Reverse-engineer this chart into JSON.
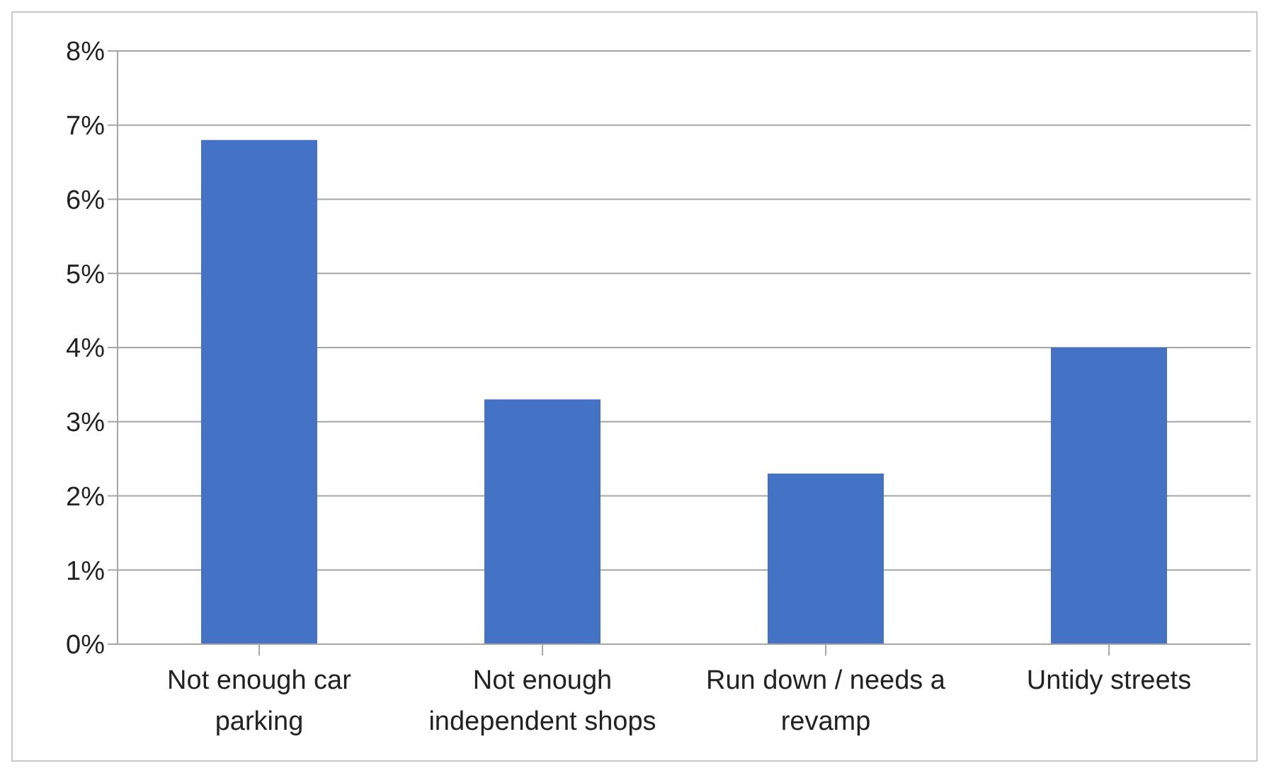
{
  "chart_data": {
    "type": "bar",
    "categories": [
      "Not enough car parking",
      "Not enough independent shops",
      "Run down / needs a revamp",
      "Untidy streets"
    ],
    "values": [
      6.8,
      3.3,
      2.3,
      4.0
    ],
    "color": "#4472c4",
    "ylim": [
      0,
      8
    ],
    "yticks": [
      {
        "value": 0,
        "label": "0%"
      },
      {
        "value": 1,
        "label": "1%"
      },
      {
        "value": 2,
        "label": "2%"
      },
      {
        "value": 3,
        "label": "3%"
      },
      {
        "value": 4,
        "label": "4%"
      },
      {
        "value": 5,
        "label": "5%"
      },
      {
        "value": 6,
        "label": "6%"
      },
      {
        "value": 7,
        "label": "7%"
      },
      {
        "value": 8,
        "label": "8%"
      }
    ],
    "grid": "y"
  }
}
